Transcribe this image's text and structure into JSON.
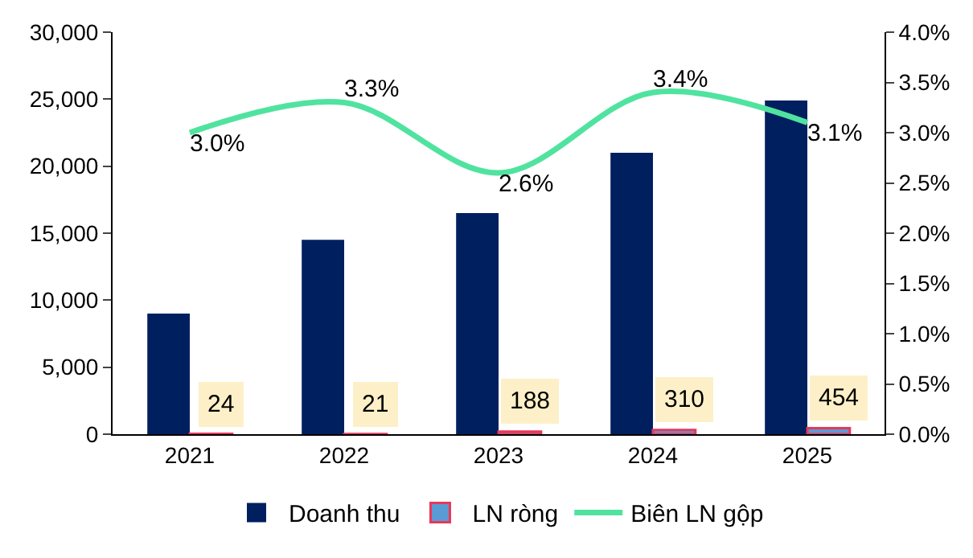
{
  "chart_data": {
    "type": "bar",
    "categories": [
      "2021",
      "2022",
      "2023",
      "2024",
      "2025"
    ],
    "series": [
      {
        "name": "Doanh thu",
        "color": "#001f5f",
        "values": [
          9000,
          14500,
          16500,
          21000,
          24900
        ]
      },
      {
        "name": "LN ròng",
        "color": "#5b9bd5",
        "values": [
          24,
          21,
          188,
          310,
          454
        ],
        "value_labels": [
          "24",
          "21",
          "188",
          "310",
          "454"
        ]
      },
      {
        "name": "Biên LN gộp",
        "type": "line",
        "axis": "y2",
        "color": "#50e3a0",
        "values": [
          3.0,
          3.3,
          2.6,
          3.4,
          3.1
        ],
        "value_labels": [
          "3.0%",
          "3.3%",
          "2.6%",
          "3.4%",
          "3.1%"
        ],
        "marker": "none",
        "line_style": "solid"
      }
    ],
    "ylim": [
      0,
      30000
    ],
    "yticks": [
      {
        "value": 0,
        "label": "0"
      },
      {
        "value": 5000,
        "label": "5,000"
      },
      {
        "value": 10000,
        "label": "10,000"
      },
      {
        "value": 15000,
        "label": "15,000"
      },
      {
        "value": 20000,
        "label": "20,000"
      },
      {
        "value": 25000,
        "label": "25,000"
      },
      {
        "value": 30000,
        "label": "30,000"
      }
    ],
    "y2lim": [
      0,
      4
    ],
    "y2ticks": [
      {
        "value": 0,
        "label": "0.0%"
      },
      {
        "value": 0.5,
        "label": "0.5%"
      },
      {
        "value": 1,
        "label": "1.0%"
      },
      {
        "value": 1.5,
        "label": "1.5%"
      },
      {
        "value": 2,
        "label": "2.0%"
      },
      {
        "value": 2.5,
        "label": "2.5%"
      },
      {
        "value": 3,
        "label": "3.0%"
      },
      {
        "value": 3.5,
        "label": "3.5%"
      },
      {
        "value": 4,
        "label": "4.0%"
      }
    ],
    "legend": "bottom"
  }
}
